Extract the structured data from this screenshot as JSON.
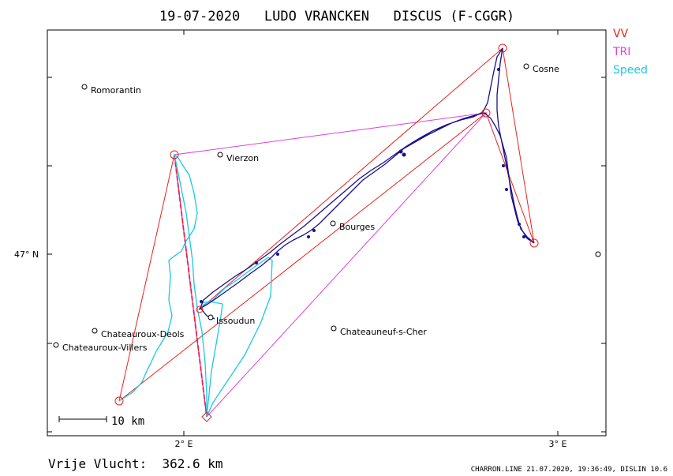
{
  "title": "19-07-2020   LUDO VRANCKEN   DISCUS (F-CGGR)",
  "legend": [
    {
      "label": "VV",
      "color": "#e8231b"
    },
    {
      "label": "TRI",
      "color": "#e040e0"
    },
    {
      "label": "Speed",
      "color": "#19c8e6"
    }
  ],
  "axis_labels": {
    "lat": "47° N",
    "lon1": "2° E",
    "lon2": "3° E"
  },
  "scale_bar": {
    "label": "10 km"
  },
  "footer": {
    "distance": "Vrije Vlucht:  362.6 km"
  },
  "credit": "CHARRON.LINE 21.07.2020, 19:36:49, DISLIN 10.6",
  "colors": {
    "track": "#1a0f8c",
    "vv": "#e8231b",
    "tri": "#e040e0",
    "speed": "#19c8e6"
  },
  "towns": [
    {
      "name": "Romorantin"
    },
    {
      "name": "Vierzon"
    },
    {
      "name": "Cosne"
    },
    {
      "name": "Bourges"
    },
    {
      "name": "Chateauroux-Deols"
    },
    {
      "name": "Chateauroux-Villers"
    },
    {
      "name": "Issoudun"
    },
    {
      "name": "Chateauneuf-s-Cher"
    }
  ]
}
